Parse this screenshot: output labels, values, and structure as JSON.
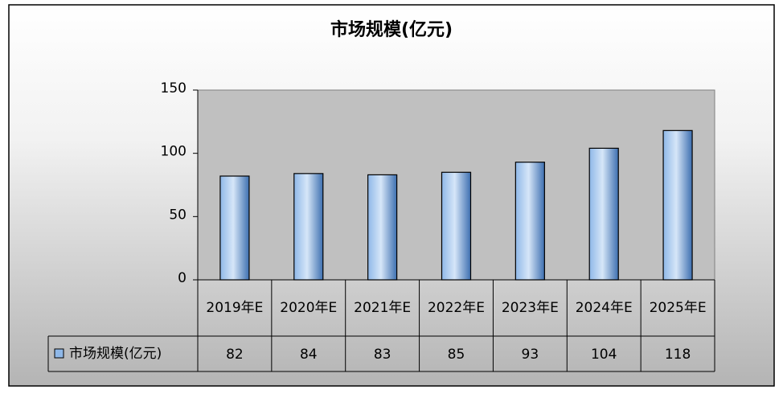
{
  "chart_data": {
    "type": "bar",
    "title": "市场规模(亿元)",
    "categories": [
      "2019年E",
      "2020年E",
      "2021年E",
      "2022年E",
      "2023年E",
      "2024年E",
      "2025年E"
    ],
    "series": [
      {
        "name": "市场规模(亿元)",
        "color": "#8fb8e8",
        "values": [
          82,
          84,
          83,
          85,
          93,
          104,
          118
        ]
      }
    ],
    "ylim": [
      0,
      150
    ],
    "yticks": [
      0,
      50,
      100,
      150
    ],
    "grid": false,
    "data_table": true
  }
}
